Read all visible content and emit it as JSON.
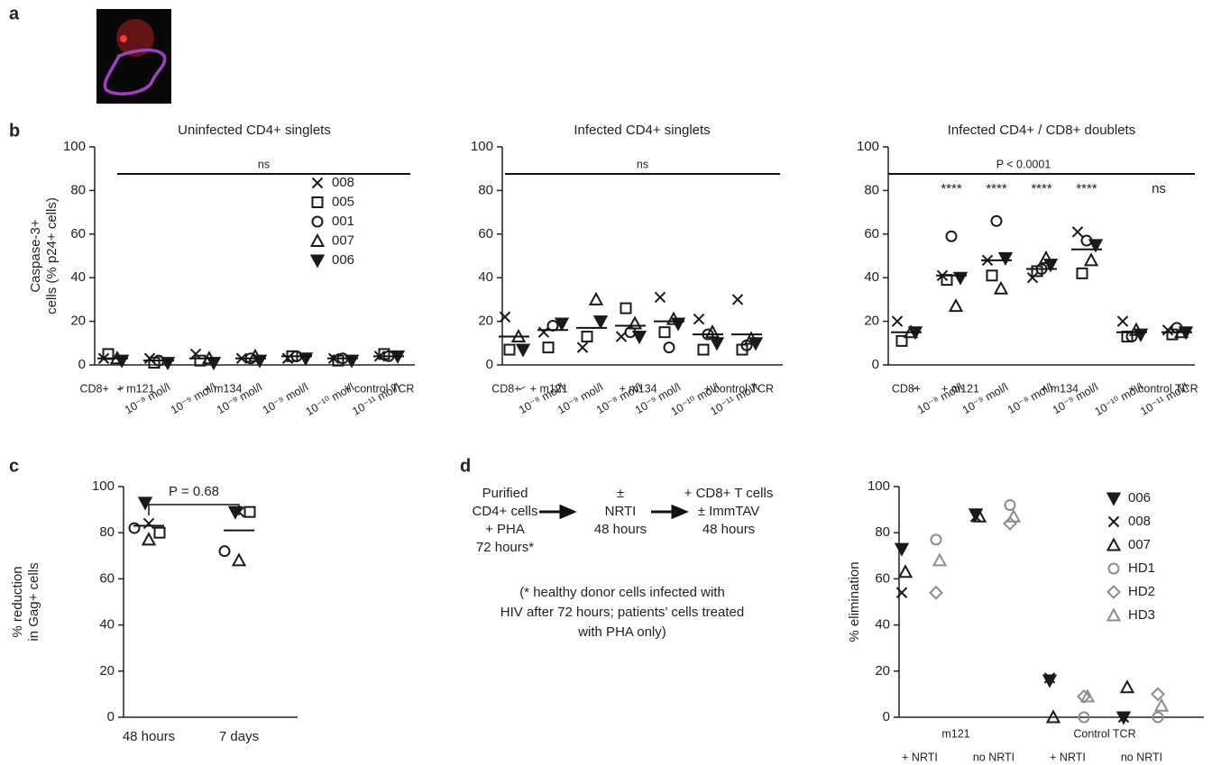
{
  "panel_labels": [
    "a",
    "b",
    "c",
    "d"
  ],
  "diagram": {
    "steps": [
      [
        "Purified",
        "CD4+ cells",
        "+ PHA",
        "72 hours*"
      ],
      [
        "±",
        "NRTI",
        "48 hours"
      ],
      [
        "+ CD8+ T cells",
        "± ImmTAV",
        "48 hours"
      ]
    ],
    "footnote": [
      "(* healthy donor cells infected with",
      "HIV after 72 hours; patients’ cells treated",
      "with PHA only)"
    ]
  },
  "chart_data": [
    {
      "type": "strip",
      "title": "Uninfected CD4+ singlets",
      "y_label": [
        "Caspase-3+",
        "cells (% p24+ cells)"
      ],
      "categories": [
        "–",
        "10⁻⁸ mol/l",
        "10⁻⁹ mol/l",
        "10⁻⁸ mol/l",
        "10⁻⁹ mol/l",
        "10⁻¹⁰ mol/l",
        "10⁻¹¹ mol/l"
      ],
      "group_labels": [
        "CD8+",
        "+ m121",
        "+ m134",
        "+ control TCR"
      ],
      "ylim": [
        0,
        100
      ],
      "yticks": [
        0,
        20,
        40,
        60,
        80,
        100
      ],
      "legend": "right",
      "annotation": "ns",
      "series": [
        {
          "name": "008",
          "marker": "x",
          "color": "#1a1a1a",
          "values": [
            3,
            3,
            5,
            3,
            3,
            3,
            4
          ]
        },
        {
          "name": "005",
          "marker": "square",
          "color": "#1a1a1a",
          "values": [
            5,
            1,
            2,
            null,
            4,
            2,
            5
          ]
        },
        {
          "name": "001",
          "marker": "circle",
          "color": "#1a1a1a",
          "values": [
            null,
            2,
            null,
            3,
            4,
            3,
            4
          ]
        },
        {
          "name": "007",
          "marker": "triangle",
          "color": "#1a1a1a",
          "values": [
            3,
            null,
            3,
            4,
            null,
            null,
            null
          ]
        },
        {
          "name": "006",
          "marker": "triangle-down",
          "color": "#1a1a1a",
          "values": [
            2,
            1,
            1,
            2,
            3,
            2,
            4
          ]
        }
      ],
      "means": [
        3,
        2,
        3,
        3,
        4,
        3,
        4
      ]
    },
    {
      "type": "strip",
      "title": "Infected CD4+ singlets",
      "categories": [
        "–",
        "10⁻⁸ mol/l",
        "10⁻⁹ mol/l",
        "10⁻⁸ mol/l",
        "10⁻⁹ mol/l",
        "10⁻¹⁰ mol/l",
        "10⁻¹¹ mol/l"
      ],
      "group_labels": [
        "CD8+",
        "+ m121",
        "+ m134",
        "+ control TCR"
      ],
      "ylim": [
        0,
        100
      ],
      "yticks": [
        0,
        20,
        40,
        60,
        80,
        100
      ],
      "annotation": "ns",
      "series": [
        {
          "marker": "x",
          "color": "#1a1a1a",
          "values": [
            22,
            15,
            8,
            13,
            31,
            21,
            30
          ]
        },
        {
          "marker": "square",
          "color": "#1a1a1a",
          "values": [
            7,
            8,
            13,
            26,
            15,
            7,
            7
          ]
        },
        {
          "marker": "circle",
          "color": "#1a1a1a",
          "values": [
            null,
            18,
            null,
            15,
            8,
            14,
            9
          ]
        },
        {
          "marker": "triangle",
          "color": "#1a1a1a",
          "values": [
            13,
            null,
            30,
            19,
            21,
            15,
            12
          ]
        },
        {
          "marker": "triangle-down",
          "color": "#1a1a1a",
          "values": [
            7,
            19,
            20,
            13,
            19,
            10,
            10
          ]
        }
      ],
      "means": [
        13,
        16,
        17,
        18,
        20,
        14,
        14
      ]
    },
    {
      "type": "strip",
      "title": "Infected CD4+ / CD8+ doublets",
      "categories": [
        "–",
        "10⁻⁸ mol/l",
        "10⁻⁹ mol/l",
        "10⁻⁸ mol/l",
        "10⁻⁹ mol/l",
        "10⁻¹⁰ mol/l",
        "10⁻¹¹ mol/l"
      ],
      "group_labels": [
        "CD8+",
        "+ m121",
        "+ m134",
        "+ control TCR"
      ],
      "ylim": [
        0,
        100
      ],
      "yticks": [
        0,
        20,
        40,
        60,
        80,
        100
      ],
      "annotation": "P < 0.0001",
      "category_annotations": [
        "****",
        "****",
        "****",
        "****",
        "ns"
      ],
      "series": [
        {
          "marker": "x",
          "color": "#1a1a1a",
          "values": [
            20,
            41,
            48,
            40,
            61,
            20,
            16
          ]
        },
        {
          "marker": "square",
          "color": "#1a1a1a",
          "values": [
            11,
            39,
            41,
            43,
            42,
            13,
            14
          ]
        },
        {
          "marker": "circle",
          "color": "#1a1a1a",
          "values": [
            null,
            59,
            66,
            44,
            57,
            13,
            17
          ]
        },
        {
          "marker": "triangle",
          "color": "#1a1a1a",
          "values": [
            15,
            27,
            35,
            49,
            48,
            16,
            15
          ]
        },
        {
          "marker": "triangle-down",
          "color": "#1a1a1a",
          "values": [
            15,
            40,
            49,
            46,
            55,
            14,
            15
          ]
        }
      ],
      "means": [
        15,
        41,
        48,
        44,
        53,
        15,
        15
      ]
    },
    {
      "type": "strip",
      "y_label": [
        "% reduction",
        "in Gag+ cells"
      ],
      "categories": [
        "48 hours",
        "7 days"
      ],
      "ylim": [
        0,
        100
      ],
      "yticks": [
        0,
        20,
        40,
        60,
        80,
        100
      ],
      "annotation": "P = 0.68",
      "series": [
        {
          "marker": "triangle-down",
          "color": "#1a1a1a",
          "values": [
            93,
            89
          ]
        },
        {
          "marker": "x",
          "color": "#1a1a1a",
          "values": [
            84,
            89
          ]
        },
        {
          "marker": "circle",
          "color": "#1a1a1a",
          "values": [
            82,
            72
          ]
        },
        {
          "marker": "triangle",
          "color": "#1a1a1a",
          "values": [
            77,
            68
          ]
        },
        {
          "marker": "square",
          "color": "#1a1a1a",
          "values": [
            80,
            89
          ]
        }
      ],
      "means": [
        83,
        81
      ]
    },
    {
      "type": "strip",
      "y_label": [
        "% elimination"
      ],
      "categories": [
        "+ NRTI",
        "no NRTI",
        "+ NRTI",
        "no NRTI"
      ],
      "group_labels": [
        "m121",
        "Control TCR"
      ],
      "ylim": [
        0,
        100
      ],
      "yticks": [
        0,
        20,
        40,
        60,
        80,
        100
      ],
      "legend": "right",
      "series": [
        {
          "name": "006",
          "marker": "triangle-down",
          "color": "#1a1a1a",
          "values": [
            73,
            88,
            16,
            0
          ]
        },
        {
          "name": "008",
          "marker": "x",
          "color": "#1a1a1a",
          "values": [
            54,
            87,
            17,
            0
          ]
        },
        {
          "name": "007",
          "marker": "triangle",
          "color": "#1a1a1a",
          "values": [
            63,
            87,
            0,
            13
          ]
        },
        {
          "name": "HD1",
          "marker": "circle",
          "color": "#8c8c8c",
          "values": [
            77,
            92,
            0,
            0
          ]
        },
        {
          "name": "HD2",
          "marker": "diamond",
          "color": "#8c8c8c",
          "values": [
            54,
            84,
            9,
            10
          ]
        },
        {
          "name": "HD3",
          "marker": "triangle",
          "color": "#8c8c8c",
          "values": [
            68,
            87,
            9,
            5
          ]
        }
      ]
    }
  ]
}
